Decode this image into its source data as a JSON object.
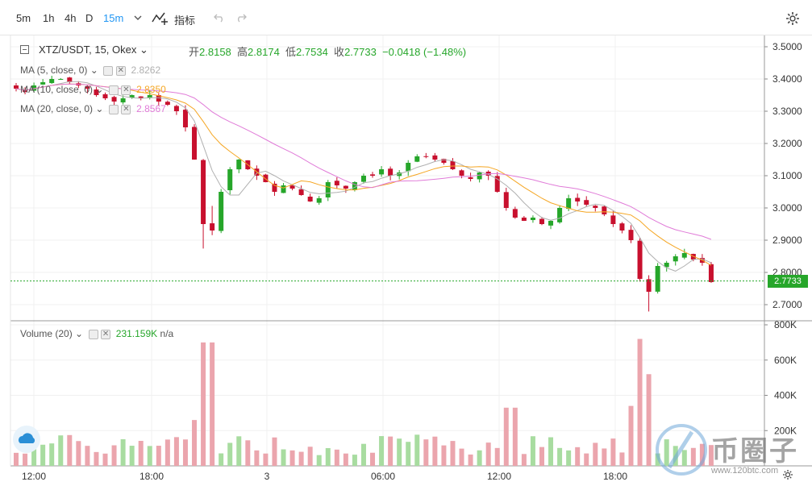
{
  "toolbar": {
    "timeframes": [
      "5m",
      "1h",
      "4h",
      "D",
      "15m"
    ],
    "active_timeframe": "15m",
    "indicators_label": "指标"
  },
  "symbol": {
    "pair": "XTZ/USDT, 15, Okex",
    "open_label": "开",
    "open": "2.8158",
    "high_label": "高",
    "high": "2.8174",
    "low_label": "低",
    "low": "2.7534",
    "close_label": "收",
    "close": "2.7733",
    "change": "−0.0418 (−1.48%)"
  },
  "ma": [
    {
      "label": "MA (5, close, 0)",
      "value": "2.8262",
      "color": "#b0b0b0"
    },
    {
      "label": "MA (10, close, 0)",
      "value": "2.8350",
      "color": "#f5a623"
    },
    {
      "label": "MA (20, close, 0)",
      "value": "2.8567",
      "color": "#e07bd8"
    }
  ],
  "volume": {
    "label": "Volume (20)",
    "value": "231.159K",
    "extra": "n/a"
  },
  "last_price_tag": "2.7733",
  "watermark": {
    "text": "币圈子",
    "url": "www.120btc.com"
  },
  "colors": {
    "up": "#26a62a",
    "down": "#c8102e",
    "vol_up": "#a8dca0",
    "vol_down": "#eba5ad",
    "accent": "#2196f3"
  },
  "chart_data": {
    "type": "candlestick",
    "price_axis": {
      "ticks": [
        "3.5000",
        "3.4000",
        "3.3000",
        "3.2000",
        "3.1000",
        "3.0000",
        "2.9000",
        "2.8000",
        "2.7000"
      ],
      "range": [
        2.65,
        3.52
      ]
    },
    "volume_axis": {
      "ticks": [
        "800K",
        "600K",
        "400K",
        "200K"
      ],
      "range": [
        0,
        800000
      ]
    },
    "time_axis": [
      "12:00",
      "18:00",
      "3",
      "06:00",
      "12:00",
      "18:00"
    ],
    "close_path": [
      3.37,
      3.36,
      3.38,
      3.39,
      3.4,
      3.4,
      3.39,
      3.38,
      3.37,
      3.35,
      3.34,
      3.33,
      3.34,
      3.35,
      3.34,
      3.35,
      3.33,
      3.32,
      3.3,
      3.25,
      3.15,
      2.95,
      2.93,
      3.05,
      3.12,
      3.15,
      3.12,
      3.1,
      3.08,
      3.05,
      3.07,
      3.06,
      3.04,
      3.02,
      3.03,
      3.08,
      3.07,
      3.06,
      3.08,
      3.1,
      3.1,
      3.12,
      3.1,
      3.11,
      3.14,
      3.16,
      3.16,
      3.15,
      3.14,
      3.12,
      3.1,
      3.09,
      3.11,
      3.1,
      3.05,
      3.0,
      2.97,
      2.96,
      2.97,
      2.95,
      2.96,
      3.0,
      3.03,
      3.02,
      3.01,
      3.0,
      2.98,
      2.95,
      2.93,
      2.9,
      2.78,
      2.74,
      2.82,
      2.83,
      2.85,
      2.86,
      2.84,
      2.83,
      2.77
    ]
  }
}
